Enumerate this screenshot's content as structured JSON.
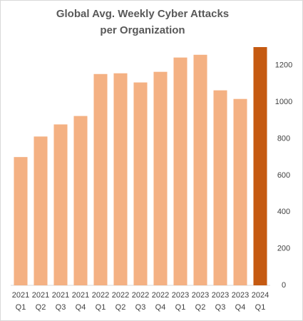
{
  "chart_data": {
    "type": "bar",
    "title": [
      "Global Avg. Weekly Cyber Attacks",
      "per Organization"
    ],
    "categories": [
      [
        "2021",
        "Q1"
      ],
      [
        "2021",
        "Q2"
      ],
      [
        "2021",
        "Q3"
      ],
      [
        "2021",
        "Q4"
      ],
      [
        "2022",
        "Q1"
      ],
      [
        "2022",
        "Q2"
      ],
      [
        "2022",
        "Q3"
      ],
      [
        "2022",
        "Q4"
      ],
      [
        "2023",
        "Q1"
      ],
      [
        "2023",
        "Q2"
      ],
      [
        "2023",
        "Q3"
      ],
      [
        "2023",
        "Q4"
      ],
      [
        "2024",
        "Q1"
      ]
    ],
    "values": [
      700,
      812,
      878,
      924,
      1153,
      1157,
      1107,
      1165,
      1243,
      1258,
      1064,
      1017,
      1300
    ],
    "colors": [
      "#f4b183",
      "#f4b183",
      "#f4b183",
      "#f4b183",
      "#f4b183",
      "#f4b183",
      "#f4b183",
      "#f4b183",
      "#f4b183",
      "#f4b183",
      "#f4b183",
      "#f4b183",
      "#c55a11"
    ],
    "ylim": [
      0,
      1300
    ],
    "yticks": [
      0,
      200,
      400,
      600,
      800,
      1000,
      1200
    ],
    "grid": false,
    "y_axis_side": "right"
  }
}
